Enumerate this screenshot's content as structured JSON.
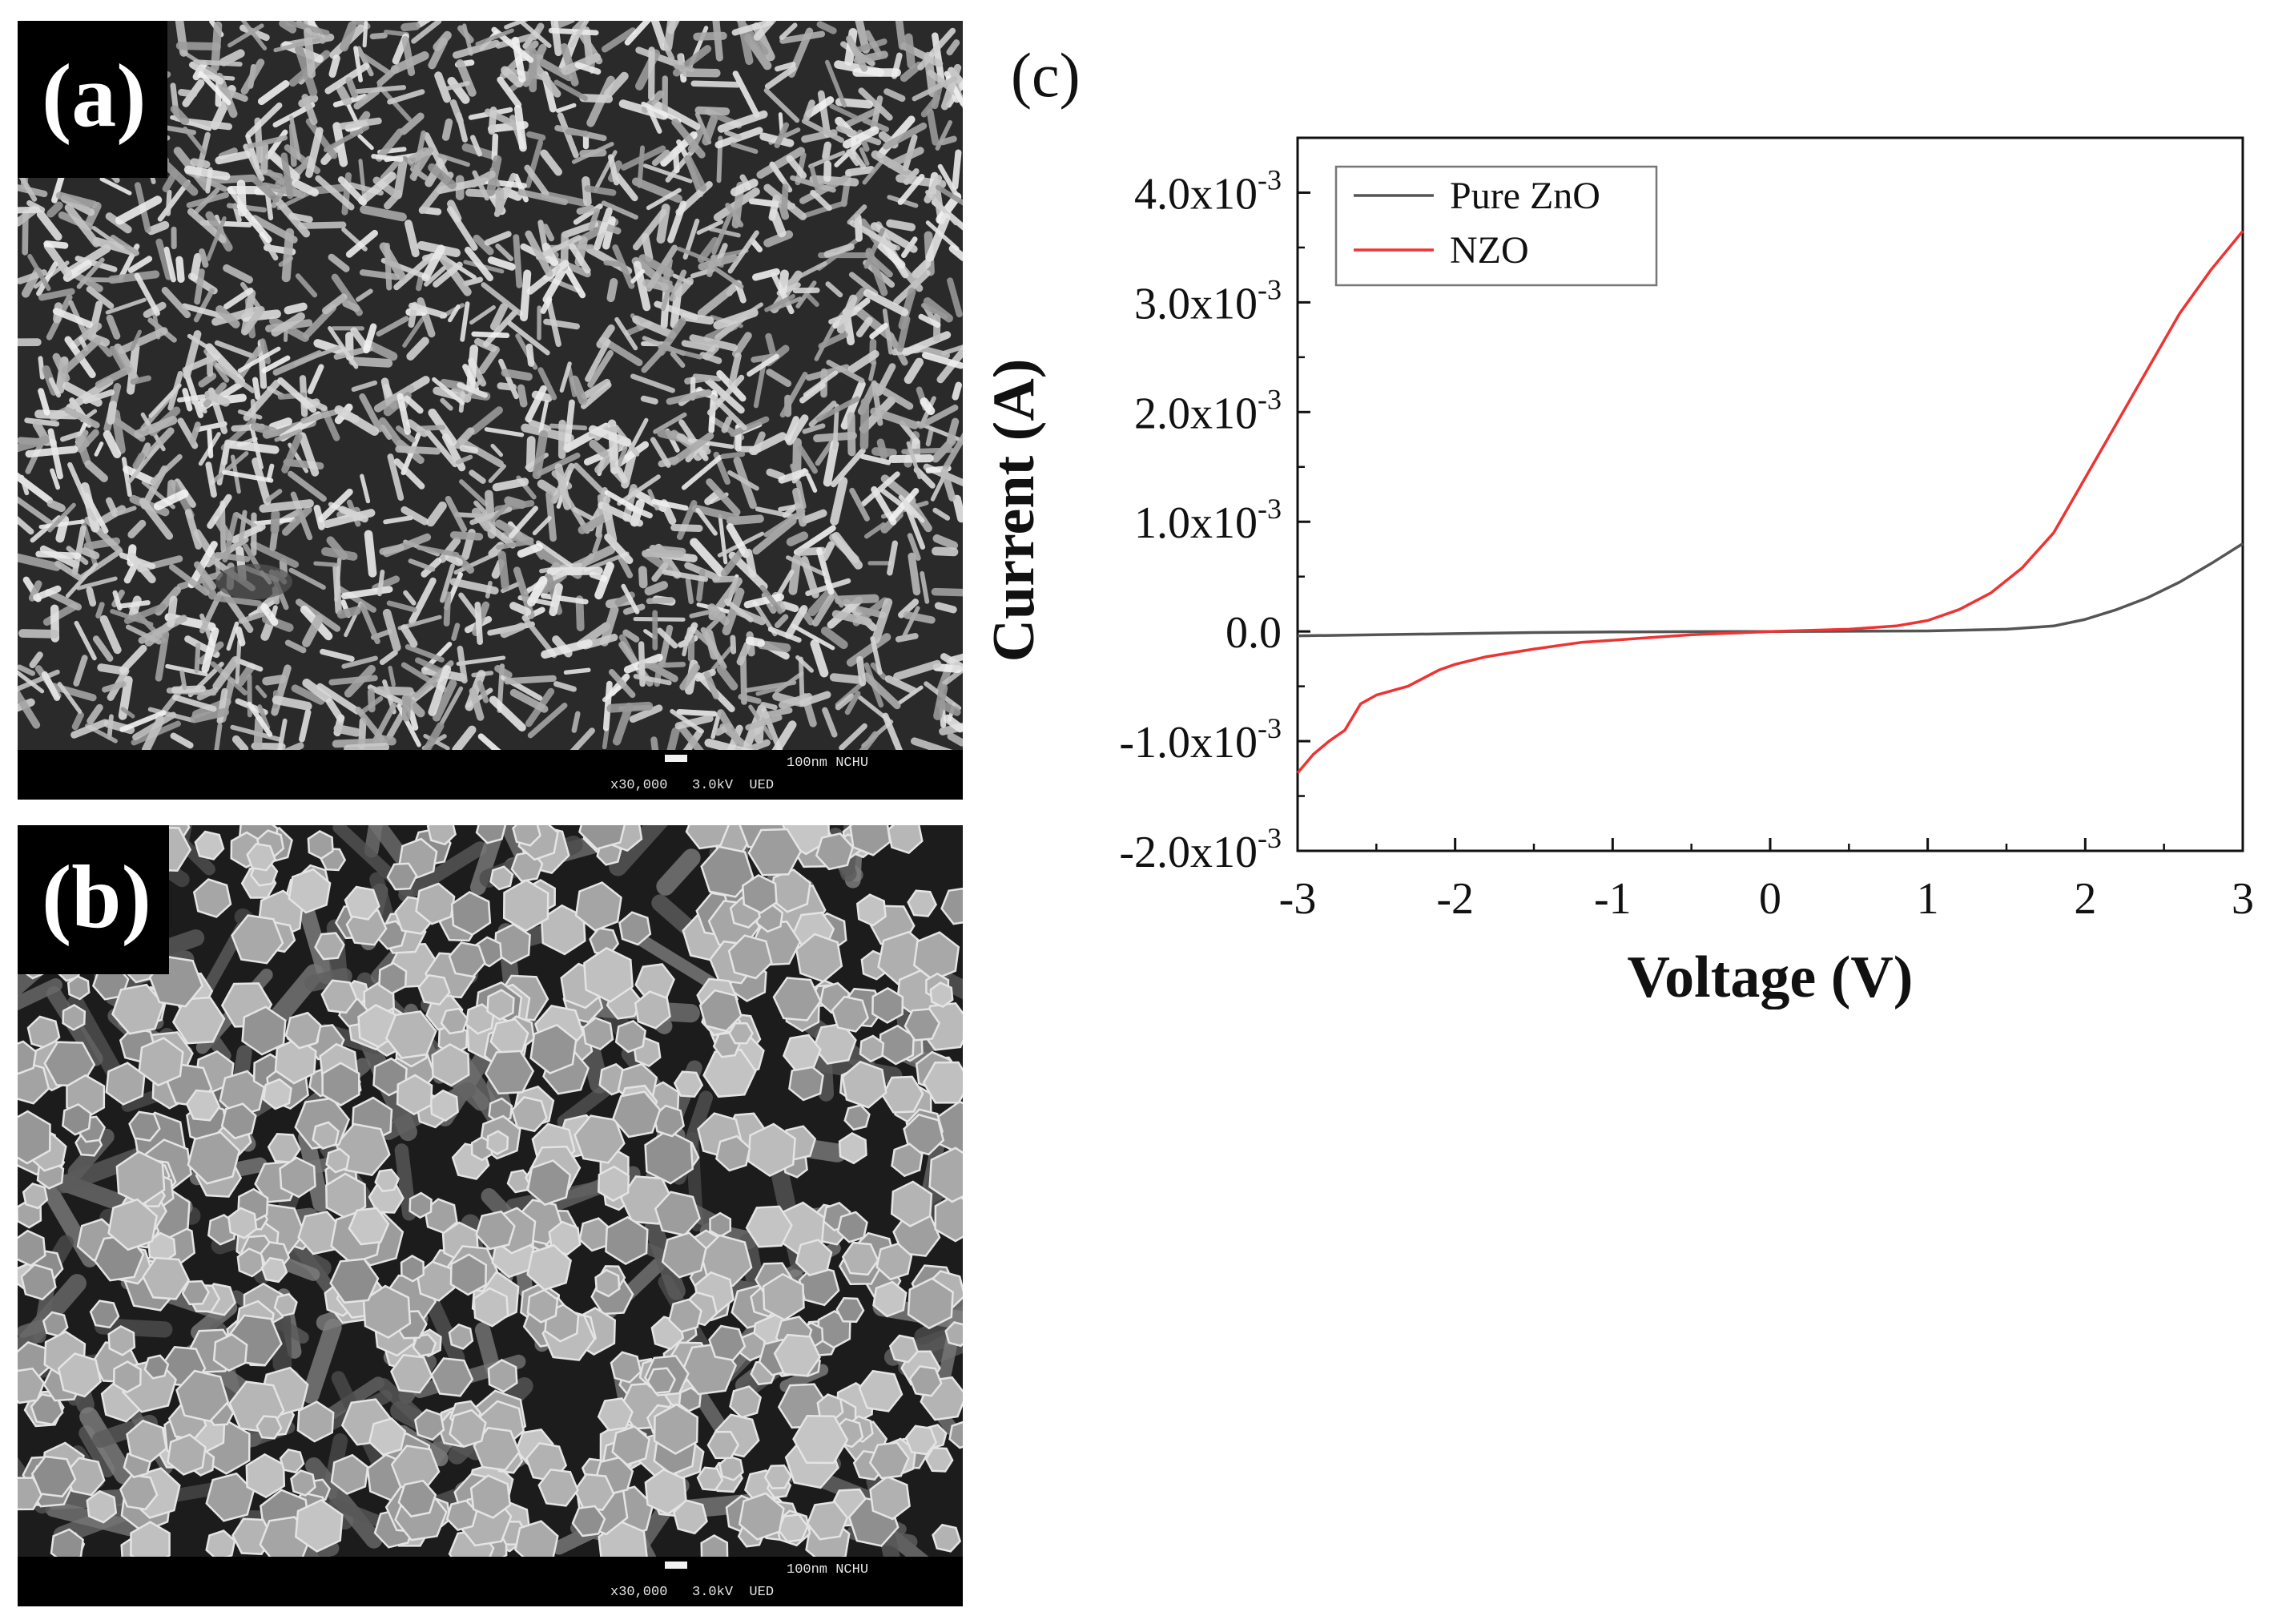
{
  "panels": {
    "a": {
      "label": "(a)",
      "info_line1": "100nm NCHU",
      "info_line2": "x30,000   3.0kV  UED",
      "morphology": "nanorods-fine"
    },
    "b": {
      "label": "(b)",
      "info_line1": "100nm NCHU",
      "info_line2": "x30,000   3.0kV  UED",
      "morphology": "hexagonal-rods"
    }
  },
  "chart_data": {
    "panel_label": "(c)",
    "type": "line",
    "title": "",
    "xlabel": "Voltage (V)",
    "ylabel": "Current (A)",
    "xlim": [
      -3,
      3
    ],
    "ylim": [
      -0.002,
      0.0045
    ],
    "x_ticks": [
      -3,
      -2,
      -1,
      0,
      1,
      2,
      3
    ],
    "x_tick_labels": [
      "-3",
      "-2",
      "-1",
      "0",
      "1",
      "2",
      "3"
    ],
    "y_ticks": [
      {
        "value": 0.004,
        "mantissa": "4.0x10",
        "exp": "-3"
      },
      {
        "value": 0.003,
        "mantissa": "3.0x10",
        "exp": "-3"
      },
      {
        "value": 0.002,
        "mantissa": "2.0x10",
        "exp": "-3"
      },
      {
        "value": 0.001,
        "mantissa": "1.0x10",
        "exp": "-3"
      },
      {
        "value": 0.0,
        "mantissa": "0.0",
        "exp": ""
      },
      {
        "value": -0.001,
        "mantissa": "-1.0x10",
        "exp": "-3"
      },
      {
        "value": -0.002,
        "mantissa": "-2.0x10",
        "exp": "-3"
      }
    ],
    "legend_position": "top-left",
    "grid": false,
    "series": [
      {
        "name": "Pure ZnO",
        "color": "#555555",
        "x": [
          -3,
          -2.5,
          -2,
          -1.5,
          -1,
          -0.5,
          0,
          0.5,
          1,
          1.5,
          1.8,
          2.0,
          2.2,
          2.4,
          2.6,
          2.8,
          3.0
        ],
        "y": [
          -4e-05,
          -3e-05,
          -2e-05,
          -1e-05,
          -5e-06,
          -2e-06,
          0.0,
          2e-06,
          5e-06,
          2e-05,
          5e-05,
          0.00011,
          0.0002,
          0.00031,
          0.00045,
          0.00062,
          0.0008
        ]
      },
      {
        "name": "NZO",
        "color": "#ee3333",
        "x": [
          -3,
          -2.9,
          -2.8,
          -2.7,
          -2.6,
          -2.5,
          -2.3,
          -2.1,
          -2.0,
          -1.8,
          -1.5,
          -1.2,
          -1.0,
          -0.5,
          0,
          0.5,
          0.8,
          1.0,
          1.2,
          1.4,
          1.6,
          1.8,
          2.0,
          2.2,
          2.4,
          2.6,
          2.8,
          3.0
        ],
        "y": [
          -0.00129,
          -0.00112,
          -0.001,
          -0.0009,
          -0.00066,
          -0.00058,
          -0.0005,
          -0.00035,
          -0.0003,
          -0.00023,
          -0.00016,
          -0.0001,
          -8e-05,
          -3e-05,
          0.0,
          2e-05,
          5e-05,
          0.0001,
          0.0002,
          0.00035,
          0.00058,
          0.0009,
          0.0014,
          0.0019,
          0.0024,
          0.0029,
          0.0033,
          0.00365
        ]
      }
    ]
  }
}
